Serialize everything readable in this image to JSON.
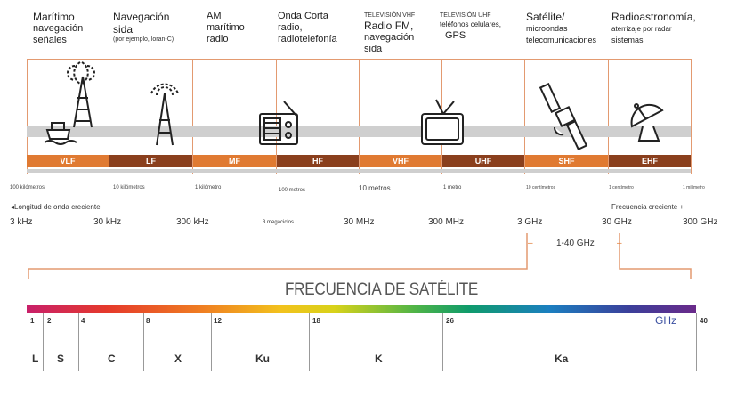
{
  "columns": [
    {
      "lines": [
        "Marítimo",
        "navegación",
        "señales"
      ],
      "band": "VLF"
    },
    {
      "lines": [
        "Navegación",
        "sida"
      ],
      "note": "(por ejemplo, loran-C)",
      "band": "LF"
    },
    {
      "lines": [
        "AM",
        "marítimo",
        "radio"
      ],
      "band": "MF"
    },
    {
      "lines": [
        "Onda Corta",
        "radio,",
        "radiotelefonía"
      ],
      "band": "HF"
    },
    {
      "small": "TELEVISIÓN VHF",
      "lines": [
        "Radio FM,",
        "navegación",
        "sida"
      ],
      "band": "VHF"
    },
    {
      "small": "TELEVISIÓN UHF",
      "lines": [
        "teléfonos celulares,",
        "GPS"
      ],
      "band": "UHF"
    },
    {
      "lines": [
        "Satélite/",
        "microondas",
        "telecomunicaciones"
      ],
      "band": "SHF"
    },
    {
      "lines": [
        "Radioastronomía,"
      ],
      "extra": "aterrizaje por radar",
      "extra2": "sistemas",
      "band": "EHF"
    }
  ],
  "wavelengths": [
    "100 kilómetros",
    "10 kilómetros",
    "1 kilómetro",
    "100 metros",
    "10 metros",
    "1 metro",
    "10 centímetros",
    "1 centímetro",
    "1 milímetro"
  ],
  "wavelength_arrow": "Longitud de onda creciente",
  "frequency_arrow": "Frecuencia creciente",
  "frequencies": [
    "3 kHz",
    "30 kHz",
    "300 kHz",
    "3 megaciclos",
    "30 MHz",
    "300 MHz",
    "3 GHz",
    "30 GHz",
    "300 GHz"
  ],
  "satellite_range": "1-40 GHz",
  "satellite_title": "FRECUENCIA DE SATÉLITE",
  "ghz_unit": "GHz",
  "ticks": [
    "1",
    "2",
    "4",
    "8",
    "12",
    "18",
    "26",
    "40"
  ],
  "sat_bands": [
    "L",
    "S",
    "C",
    "X",
    "Ku",
    "K",
    "Ka"
  ],
  "colors": {
    "orange": "#e07a32",
    "brown": "#8a3f1d",
    "line": "#e39a70"
  }
}
